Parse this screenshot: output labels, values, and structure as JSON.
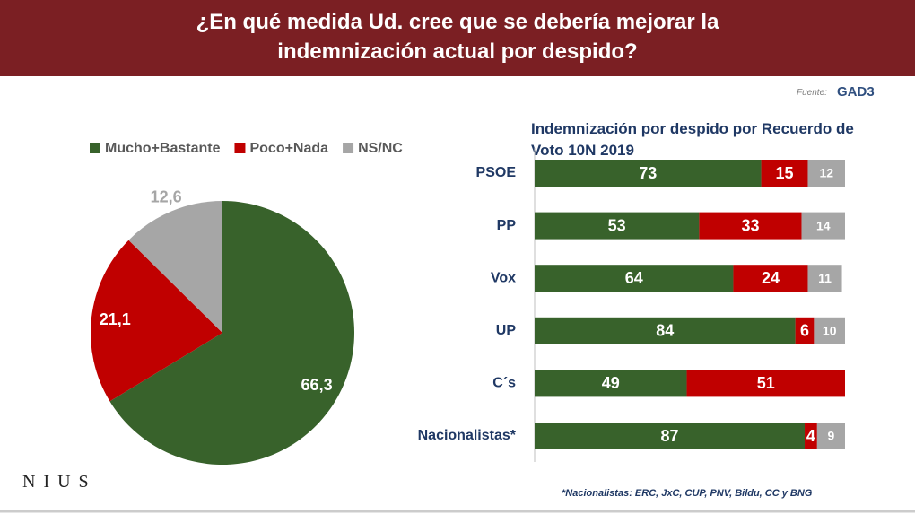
{
  "header": {
    "title": "¿En qué medida Ud. cree que se debería mejorar la indemnización actual por despido?"
  },
  "source_label": "Fuente:",
  "source": "GAD3",
  "brand": "NIUS",
  "footnote": "*Nacionalistas: ERC, JxC, CUP, PNV, Bildu, CC y BNG",
  "chart_data": [
    {
      "type": "pie",
      "categories": [
        "Mucho+Bastante",
        "Poco+Nada",
        "NS/NC"
      ],
      "values": [
        66.3,
        21.1,
        12.6
      ],
      "value_labels": [
        "66,3",
        "21,1",
        "12,6"
      ],
      "colors": [
        "#38622b",
        "#c00000",
        "#a6a6a6"
      ],
      "legend": "top"
    },
    {
      "type": "stacked_bar_horizontal",
      "title": "Indemnización por despido por Recuerdo de Voto 10N 2019",
      "categories": [
        "PSOE",
        "PP",
        "Vox",
        "UP",
        "C´s",
        "Nacionalistas*"
      ],
      "xlim": [
        0,
        100
      ],
      "series": [
        {
          "name": "Mucho+Bastante",
          "color": "#38622b",
          "values": [
            73,
            53,
            64,
            84,
            49,
            87
          ]
        },
        {
          "name": "Poco+Nada",
          "color": "#c00000",
          "values": [
            15,
            33,
            24,
            6,
            51,
            4
          ]
        },
        {
          "name": "NS/NC",
          "color": "#a6a6a6",
          "values": [
            12,
            14,
            11,
            10,
            null,
            9
          ]
        }
      ]
    }
  ]
}
